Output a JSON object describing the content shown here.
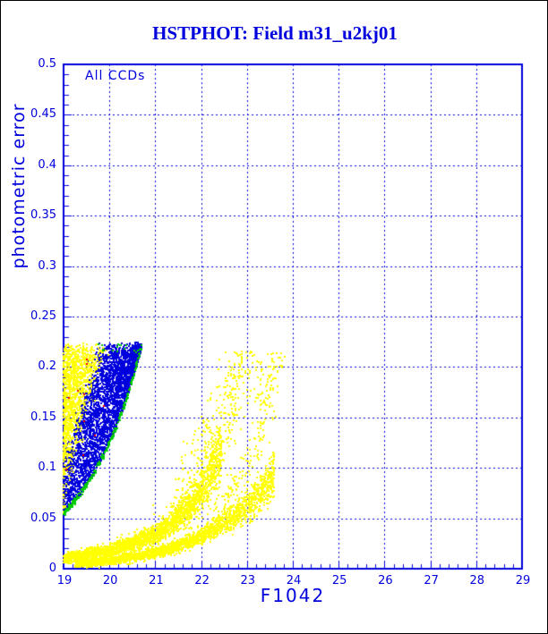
{
  "window": {
    "background": "#ffffff",
    "border_color": "#000000"
  },
  "title": {
    "text": "HSTPHOT: Field m31_u2kj01",
    "color": "#0000dd"
  },
  "annotation": {
    "text": "All CCDs"
  },
  "chart_data": {
    "type": "scatter",
    "title": "HSTPHOT: Field m31_u2kj01",
    "subtitle": "All CCDs",
    "xlabel": "F1042",
    "ylabel": "photometric error",
    "xlim": [
      19,
      29
    ],
    "ylim": [
      0,
      0.5
    ],
    "x_tick_labels": [
      "19",
      "20",
      "21",
      "22",
      "23",
      "24",
      "25",
      "26",
      "27",
      "28",
      "29"
    ],
    "y_tick_labels": [
      "0",
      "0.05",
      "0.1",
      "0.15",
      "0.2",
      "0.25",
      "0.3",
      "0.35",
      "0.4",
      "0.45",
      "0.5"
    ],
    "x_major_step": 1,
    "x_minor_step": 0.2,
    "y_major_step": 0.05,
    "y_minor_step": 0.01,
    "grid": {
      "on": true,
      "style": "dashed",
      "x_lines": [
        20,
        21,
        22,
        23,
        24,
        25,
        26,
        27,
        28
      ],
      "y_lines": [
        0.05,
        0.1,
        0.15,
        0.2,
        0.25,
        0.3,
        0.35,
        0.4,
        0.45
      ]
    },
    "legend": "none",
    "colors": {
      "frame": "#0000dd",
      "grid": "#0000dd",
      "text": "#0000dd",
      "yellow_points": "#ffff00",
      "blue_points": "#0000dd",
      "green_points": "#00cc00",
      "red_points": "#ff0000"
    },
    "marker_size_px": 2,
    "series": [
      {
        "name": "bright-saturated-cluster",
        "description": "Dense fan of stars at 19<F1042<20.7 with 0.055<error<0.22; yellow points on bright/left side, blue points toward faint/right side",
        "colors": [
          "#ffff00",
          "#0000dd"
        ],
        "gen": {
          "kind": "cluster",
          "count": 4600,
          "x_min": 19.0,
          "x_span": 1.7,
          "x_power": 1.25,
          "err_floor_base": 0.055,
          "err_floor_k": 0.815,
          "err_cap": 0.2185,
          "cap_jitter": 0.012,
          "split_e0": 0.088,
          "split_slope": 6.3,
          "split_jitter": 0.1
        }
      },
      {
        "name": "cluster-green-edge",
        "description": "Green points tracing the lower-right boundary curve of the cluster from (19,0.055) to (20.7,0.22)",
        "color": "#00cc00",
        "gen": {
          "kind": "edge",
          "count": 280,
          "x_min": 19.0,
          "x_span": 1.7,
          "err_floor_base": 0.055,
          "err_floor_k": 0.815,
          "sigma": 0.0015,
          "top_count": 16,
          "top_x0": 19.75,
          "top_x_span": 0.95,
          "top_e": 0.2185,
          "top_jitter": 0.008
        }
      },
      {
        "name": "red-outliers",
        "description": "A few isolated red points inside the cluster",
        "color": "#ff0000",
        "gen": {
          "kind": "outliers",
          "count": 10,
          "x0": 19.05,
          "x_span": 0.85,
          "e0": 0.08,
          "e_span": 0.135
        }
      },
      {
        "name": "error-curve-chip1-dense",
        "description": "Dense yellow photometric-error curve rising from (19,0.010) to (22.45,0.115)",
        "color": "#ffff00",
        "gen": {
          "kind": "stream",
          "count": 2400,
          "wfrac": 0.13,
          "wabs": 0.002,
          "centerline": [
            [
              19.0,
              0.01
            ],
            [
              19.5,
              0.014
            ],
            [
              20.0,
              0.018
            ],
            [
              20.5,
              0.025
            ],
            [
              21.0,
              0.034
            ],
            [
              21.5,
              0.05
            ],
            [
              21.8,
              0.064
            ],
            [
              22.1,
              0.085
            ],
            [
              22.45,
              0.115
            ]
          ]
        }
      },
      {
        "name": "error-curve-chip1-faint-tail",
        "description": "Sparser yellow continuation of curve 1 up to (23.2,0.22)",
        "color": "#ffff00",
        "gen": {
          "kind": "tail",
          "count": 360,
          "e_range": [
            0.05,
            0.216
          ],
          "x_sigma": 0.25,
          "centerline_inv": [
            [
              0.05,
              21.4
            ],
            [
              0.07,
              21.7
            ],
            [
              0.09,
              21.95
            ],
            [
              0.12,
              22.2
            ],
            [
              0.15,
              22.45
            ],
            [
              0.18,
              22.65
            ],
            [
              0.216,
              23.0
            ]
          ]
        }
      },
      {
        "name": "error-curve-chip2-dense",
        "description": "Second dense yellow error curve rising from (19.25,0.004) to (23.6,0.095)",
        "color": "#ffff00",
        "gen": {
          "kind": "stream",
          "count": 2300,
          "wfrac": 0.12,
          "wabs": 0.0018,
          "centerline": [
            [
              19.25,
              0.004
            ],
            [
              20.0,
              0.008
            ],
            [
              20.75,
              0.013
            ],
            [
              21.5,
              0.022
            ],
            [
              22.0,
              0.032
            ],
            [
              22.5,
              0.045
            ],
            [
              23.0,
              0.062
            ],
            [
              23.3,
              0.076
            ],
            [
              23.6,
              0.095
            ]
          ]
        }
      },
      {
        "name": "error-curve-chip2-faint-tail",
        "description": "Sparse yellow continuation of curve 2 up to (23.7,0.21)",
        "color": "#ffff00",
        "gen": {
          "kind": "tail",
          "count": 200,
          "e_range": [
            0.05,
            0.215
          ],
          "x_sigma": 0.12,
          "centerline_inv": [
            [
              0.05,
              22.15
            ],
            [
              0.07,
              22.55
            ],
            [
              0.1,
              23.0
            ],
            [
              0.13,
              23.25
            ],
            [
              0.16,
              23.4
            ],
            [
              0.21,
              23.6
            ]
          ]
        }
      }
    ]
  }
}
